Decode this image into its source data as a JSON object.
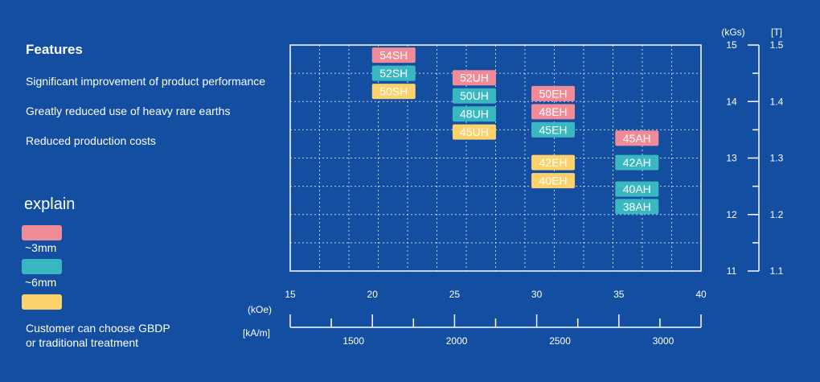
{
  "features": {
    "title": "Features",
    "items": [
      "Significant improvement of product performance",
      "Greatly reduced use of heavy rare earths",
      "Reduced production costs"
    ]
  },
  "explain": {
    "title": "explain",
    "legend": [
      {
        "color": "#f28b98",
        "label": "~3mm"
      },
      {
        "color": "#3ab8c1",
        "label": "~6mm"
      },
      {
        "color": "#fdd26b",
        "label": ""
      }
    ],
    "note_line1": "Customer can choose GBDP",
    "note_line2": "or traditional treatment"
  },
  "colors": {
    "background": "#134ea0",
    "pink": "#f28b98",
    "teal": "#3ab8c1",
    "yellow": "#fdd26b",
    "white": "#ffffff"
  },
  "chart_data": {
    "type": "scatter",
    "title": "",
    "grid": true,
    "x_axis": {
      "unit_label": "(kOe)",
      "range": [
        15,
        40
      ],
      "ticks": [
        15,
        20,
        25,
        30,
        35,
        40
      ],
      "tick_labels": [
        "15",
        "20",
        "25",
        "30",
        "35",
        "40"
      ]
    },
    "x2_axis": {
      "unit_label": "[kA/m]",
      "ticks": [
        1500,
        2000,
        2500,
        3000
      ],
      "tick_labels": [
        "1500",
        "2000",
        "2500",
        "3000"
      ]
    },
    "y_axis": {
      "unit_label": "(kGs)",
      "range": [
        11,
        15
      ],
      "ticks": [
        11,
        12,
        13,
        14,
        15
      ],
      "tick_labels": [
        "11",
        "12",
        "13",
        "14",
        "15"
      ]
    },
    "y2_axis": {
      "unit_label": "[T]",
      "ticks": [
        1.1,
        1.2,
        1.3,
        1.4,
        1.5
      ],
      "tick_labels": [
        "1.1",
        "1.2",
        "1.3",
        "1.4",
        "1.5"
      ]
    },
    "grades": [
      {
        "label": "54SH",
        "hcj_kOe": 21.3,
        "br_kGs": 14.82,
        "color": "pink"
      },
      {
        "label": "52SH",
        "hcj_kOe": 21.3,
        "br_kGs": 14.5,
        "color": "teal"
      },
      {
        "label": "50SH",
        "hcj_kOe": 21.3,
        "br_kGs": 14.18,
        "color": "yellow"
      },
      {
        "label": "52UH",
        "hcj_kOe": 26.2,
        "br_kGs": 14.42,
        "color": "pink"
      },
      {
        "label": "50UH",
        "hcj_kOe": 26.2,
        "br_kGs": 14.1,
        "color": "teal"
      },
      {
        "label": "48UH",
        "hcj_kOe": 26.2,
        "br_kGs": 13.78,
        "color": "teal"
      },
      {
        "label": "45UH",
        "hcj_kOe": 26.2,
        "br_kGs": 13.46,
        "color": "yellow"
      },
      {
        "label": "50EH",
        "hcj_kOe": 31.0,
        "br_kGs": 14.14,
        "color": "pink"
      },
      {
        "label": "48EH",
        "hcj_kOe": 31.0,
        "br_kGs": 13.82,
        "color": "pink"
      },
      {
        "label": "45EH",
        "hcj_kOe": 31.0,
        "br_kGs": 13.5,
        "color": "teal"
      },
      {
        "label": "42EH",
        "hcj_kOe": 31.0,
        "br_kGs": 12.92,
        "color": "yellow"
      },
      {
        "label": "40EH",
        "hcj_kOe": 31.0,
        "br_kGs": 12.6,
        "color": "yellow"
      },
      {
        "label": "45AH",
        "hcj_kOe": 36.1,
        "br_kGs": 13.35,
        "color": "pink"
      },
      {
        "label": "42AH",
        "hcj_kOe": 36.1,
        "br_kGs": 12.92,
        "color": "teal"
      },
      {
        "label": "40AH",
        "hcj_kOe": 36.1,
        "br_kGs": 12.45,
        "color": "teal"
      },
      {
        "label": "38AH",
        "hcj_kOe": 36.1,
        "br_kGs": 12.14,
        "color": "teal"
      }
    ]
  }
}
